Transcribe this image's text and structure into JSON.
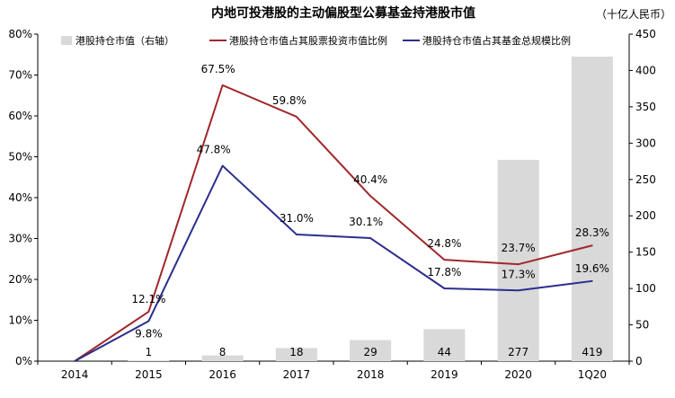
{
  "chart_data": {
    "type": "bar",
    "title": "内地可投港股的主动偏股型公募基金持港股市值",
    "unit": "（十亿人民币）",
    "categories": [
      "2014",
      "2015",
      "2016",
      "2017",
      "2018",
      "2019",
      "2020",
      "1Q20"
    ],
    "y_left": {
      "ticks": [
        "0%",
        "10%",
        "20%",
        "30%",
        "40%",
        "50%",
        "60%",
        "70%",
        "80%"
      ],
      "range": [
        0,
        80
      ]
    },
    "y_right": {
      "ticks": [
        "0",
        "50",
        "100",
        "150",
        "200",
        "250",
        "300",
        "350",
        "400",
        "450"
      ],
      "range": [
        0,
        450
      ]
    },
    "grid": false,
    "legend_position": "top",
    "series": [
      {
        "name": "港股持仓市值（右轴）",
        "type": "bar",
        "axis": "right",
        "color": "#d9d9d9",
        "values": [
          0,
          1,
          8,
          18,
          29,
          44,
          277,
          419
        ],
        "labels": [
          "",
          "1",
          "8",
          "18",
          "29",
          "44",
          "277",
          "419"
        ]
      },
      {
        "name": "港股持仓市值占其股票投资市值比例",
        "type": "line",
        "axis": "left",
        "color": "#a0282a",
        "values": [
          0,
          12.1,
          67.5,
          59.8,
          40.4,
          24.8,
          23.7,
          28.3
        ],
        "labels": [
          "",
          "12.1%",
          "67.5%",
          "59.8%",
          "40.4%",
          "24.8%",
          "23.7%",
          "28.3%"
        ]
      },
      {
        "name": "港股持仓市值占其基金总规模比例",
        "type": "line",
        "axis": "left",
        "color": "#2b2e8c",
        "values": [
          0,
          9.8,
          47.8,
          31.0,
          30.1,
          17.8,
          17.3,
          19.6
        ],
        "labels": [
          "",
          "9.8%",
          "47.8%",
          "31.0%",
          "30.1%",
          "17.8%",
          "17.3%",
          "19.6%"
        ]
      }
    ]
  }
}
